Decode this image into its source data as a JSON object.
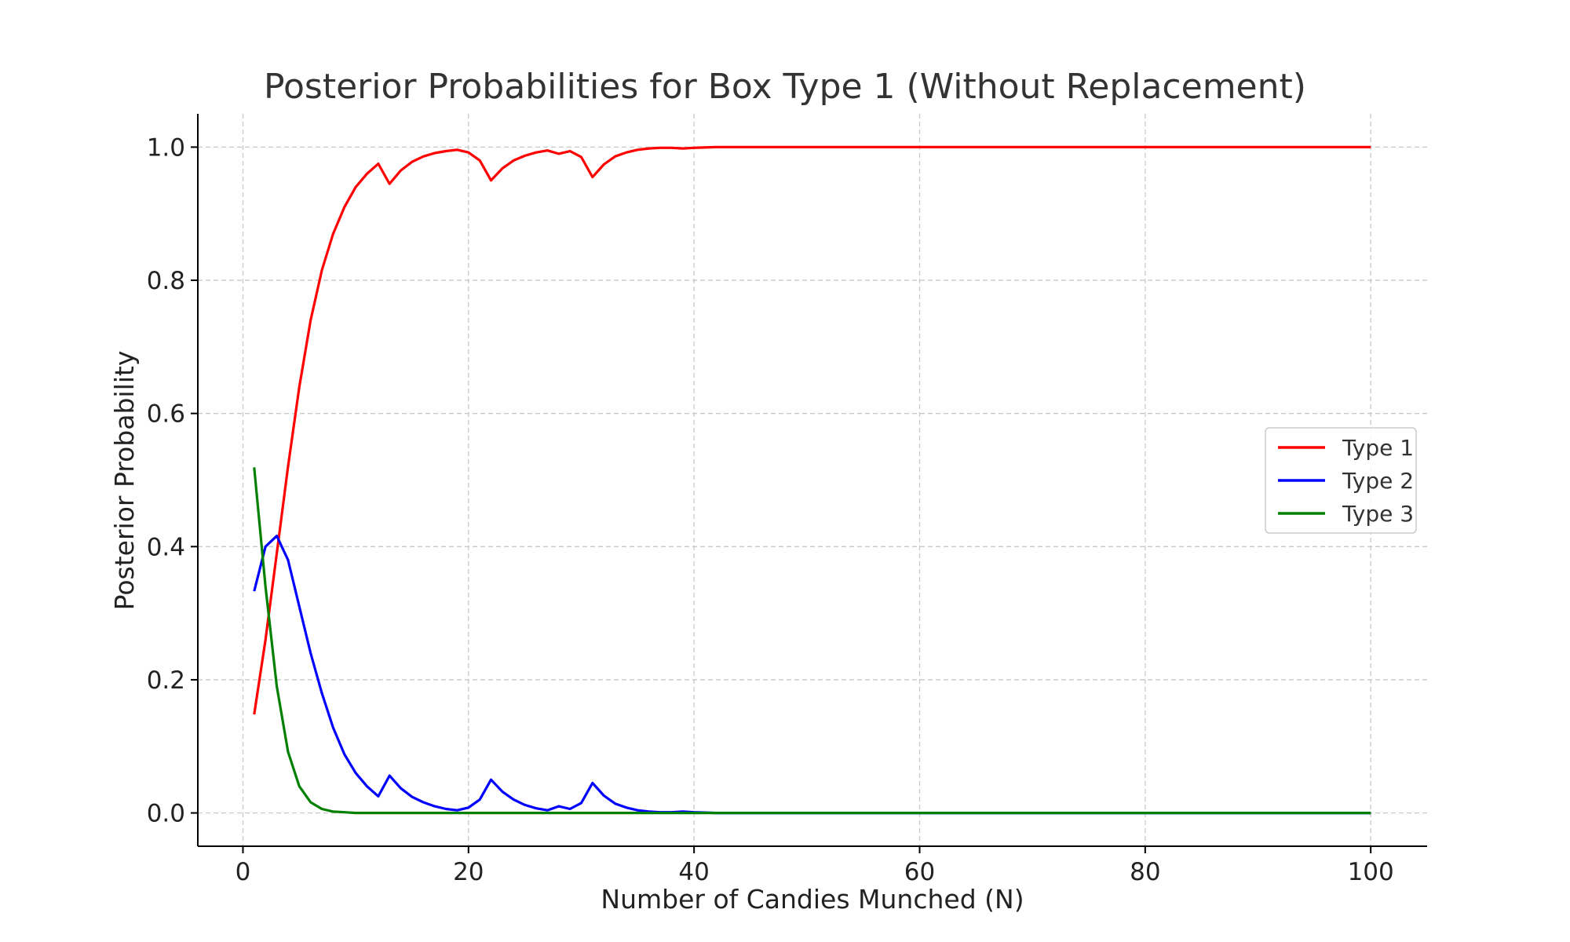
{
  "chart_data": {
    "type": "line",
    "title": "Posterior Probabilities for Box Type 1 (Without Replacement)",
    "xlabel": "Number of Candies Munched (N)",
    "ylabel": "Posterior Probability",
    "xlim": [
      -4,
      105
    ],
    "ylim": [
      -0.05,
      1.05
    ],
    "xticks": [
      "0",
      "20",
      "40",
      "60",
      "80",
      "100"
    ],
    "yticks": [
      "0.0",
      "0.2",
      "0.4",
      "0.6",
      "0.8",
      "1.0"
    ],
    "grid": true,
    "legend_position": "center-right",
    "series": [
      {
        "name": "Type 1",
        "color": "#ff0000",
        "points": [
          [
            1,
            0.148
          ],
          [
            2,
            0.26
          ],
          [
            3,
            0.39
          ],
          [
            4,
            0.52
          ],
          [
            5,
            0.64
          ],
          [
            6,
            0.74
          ],
          [
            7,
            0.815
          ],
          [
            8,
            0.87
          ],
          [
            9,
            0.91
          ],
          [
            10,
            0.94
          ],
          [
            11,
            0.96
          ],
          [
            12,
            0.975
          ],
          [
            13,
            0.945
          ],
          [
            14,
            0.965
          ],
          [
            15,
            0.978
          ],
          [
            16,
            0.986
          ],
          [
            17,
            0.991
          ],
          [
            18,
            0.994
          ],
          [
            19,
            0.996
          ],
          [
            20,
            0.992
          ],
          [
            21,
            0.98
          ],
          [
            22,
            0.95
          ],
          [
            23,
            0.968
          ],
          [
            24,
            0.98
          ],
          [
            25,
            0.987
          ],
          [
            26,
            0.992
          ],
          [
            27,
            0.995
          ],
          [
            28,
            0.99
          ],
          [
            29,
            0.994
          ],
          [
            30,
            0.985
          ],
          [
            31,
            0.955
          ],
          [
            32,
            0.974
          ],
          [
            33,
            0.986
          ],
          [
            34,
            0.992
          ],
          [
            35,
            0.996
          ],
          [
            36,
            0.998
          ],
          [
            37,
            0.999
          ],
          [
            38,
            0.999
          ],
          [
            39,
            0.998
          ],
          [
            40,
            0.999
          ],
          [
            42,
            1.0
          ],
          [
            100,
            1.0
          ]
        ]
      },
      {
        "name": "Type 2",
        "color": "#0000ff",
        "points": [
          [
            1,
            0.333
          ],
          [
            2,
            0.4
          ],
          [
            3,
            0.416
          ],
          [
            4,
            0.38
          ],
          [
            5,
            0.31
          ],
          [
            6,
            0.24
          ],
          [
            7,
            0.18
          ],
          [
            8,
            0.128
          ],
          [
            9,
            0.088
          ],
          [
            10,
            0.06
          ],
          [
            11,
            0.04
          ],
          [
            12,
            0.025
          ],
          [
            13,
            0.056
          ],
          [
            14,
            0.037
          ],
          [
            15,
            0.024
          ],
          [
            16,
            0.016
          ],
          [
            17,
            0.01
          ],
          [
            18,
            0.006
          ],
          [
            19,
            0.004
          ],
          [
            20,
            0.008
          ],
          [
            21,
            0.02
          ],
          [
            22,
            0.05
          ],
          [
            23,
            0.032
          ],
          [
            24,
            0.02
          ],
          [
            25,
            0.012
          ],
          [
            26,
            0.007
          ],
          [
            27,
            0.004
          ],
          [
            28,
            0.01
          ],
          [
            29,
            0.006
          ],
          [
            30,
            0.015
          ],
          [
            31,
            0.045
          ],
          [
            32,
            0.026
          ],
          [
            33,
            0.014
          ],
          [
            34,
            0.008
          ],
          [
            35,
            0.004
          ],
          [
            36,
            0.002
          ],
          [
            37,
            0.001
          ],
          [
            38,
            0.001
          ],
          [
            39,
            0.002
          ],
          [
            40,
            0.001
          ],
          [
            42,
            0.0
          ],
          [
            100,
            0.0
          ]
        ]
      },
      {
        "name": "Type 3",
        "color": "#008000",
        "points": [
          [
            1,
            0.519
          ],
          [
            2,
            0.34
          ],
          [
            3,
            0.19
          ],
          [
            4,
            0.092
          ],
          [
            5,
            0.04
          ],
          [
            6,
            0.016
          ],
          [
            7,
            0.006
          ],
          [
            8,
            0.002
          ],
          [
            9,
            0.001
          ],
          [
            10,
            0.0
          ],
          [
            100,
            0.0
          ]
        ]
      }
    ]
  }
}
